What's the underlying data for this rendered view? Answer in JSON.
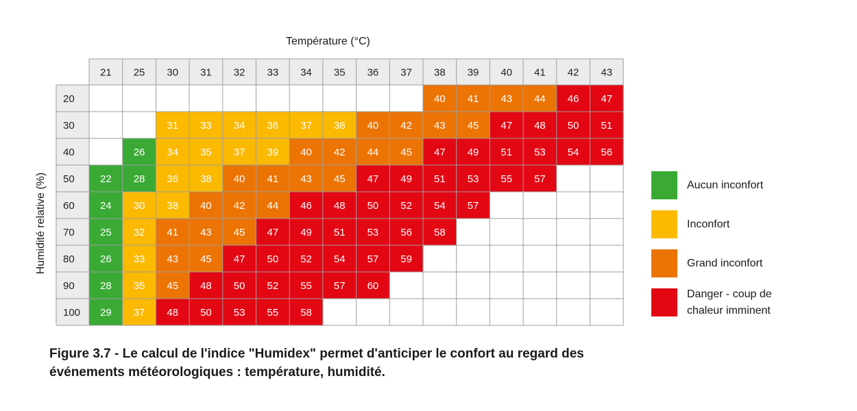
{
  "chart_data": {
    "type": "heatmap",
    "xlabel": "Température (°C)",
    "ylabel": "Humidité relative (%)",
    "columns": [
      21,
      25,
      30,
      31,
      32,
      33,
      34,
      35,
      36,
      37,
      38,
      39,
      40,
      41,
      42,
      43
    ],
    "rows": [
      20,
      30,
      40,
      50,
      60,
      70,
      80,
      90,
      100
    ],
    "values": [
      [
        null,
        null,
        null,
        null,
        null,
        null,
        null,
        null,
        null,
        null,
        40,
        41,
        43,
        44,
        46,
        47
      ],
      [
        null,
        null,
        31,
        33,
        34,
        36,
        37,
        38,
        40,
        42,
        43,
        45,
        47,
        48,
        50,
        51
      ],
      [
        null,
        26,
        34,
        35,
        37,
        39,
        40,
        42,
        44,
        45,
        47,
        49,
        51,
        53,
        54,
        56
      ],
      [
        22,
        28,
        36,
        38,
        40,
        41,
        43,
        45,
        47,
        49,
        51,
        53,
        55,
        57,
        null,
        null
      ],
      [
        24,
        30,
        38,
        40,
        42,
        44,
        46,
        48,
        50,
        52,
        54,
        57,
        null,
        null,
        null,
        null
      ],
      [
        25,
        32,
        41,
        43,
        45,
        47,
        49,
        51,
        53,
        56,
        58,
        null,
        null,
        null,
        null,
        null
      ],
      [
        26,
        33,
        43,
        45,
        47,
        50,
        52,
        54,
        57,
        59,
        null,
        null,
        null,
        null,
        null,
        null
      ],
      [
        28,
        35,
        45,
        48,
        50,
        52,
        55,
        57,
        60,
        null,
        null,
        null,
        null,
        null,
        null,
        null
      ],
      [
        29,
        37,
        48,
        50,
        53,
        55,
        58,
        null,
        null,
        null,
        null,
        null,
        null,
        null,
        null,
        null
      ]
    ],
    "categories": [
      {
        "label": "Aucun inconfort",
        "color": "#3aaa35",
        "range": [
          20,
          29
        ]
      },
      {
        "label": "Inconfort",
        "color": "#fbb900",
        "range": [
          30,
          39
        ]
      },
      {
        "label": "Grand inconfort",
        "color": "#ec7404",
        "range": [
          40,
          45
        ]
      },
      {
        "label": "Danger - coup de chaleur imminent",
        "color": "#e30613",
        "range": [
          46,
          60
        ]
      }
    ],
    "colors": {
      "header_bg": "#ececec",
      "grid_line": "#9e9e9e"
    },
    "legend_position": "right"
  },
  "caption": "Figure 3.7 - Le calcul de l'indice \"Humidex\" permet d'anticiper le confort au regard des événements météorologiques : température, humidité."
}
